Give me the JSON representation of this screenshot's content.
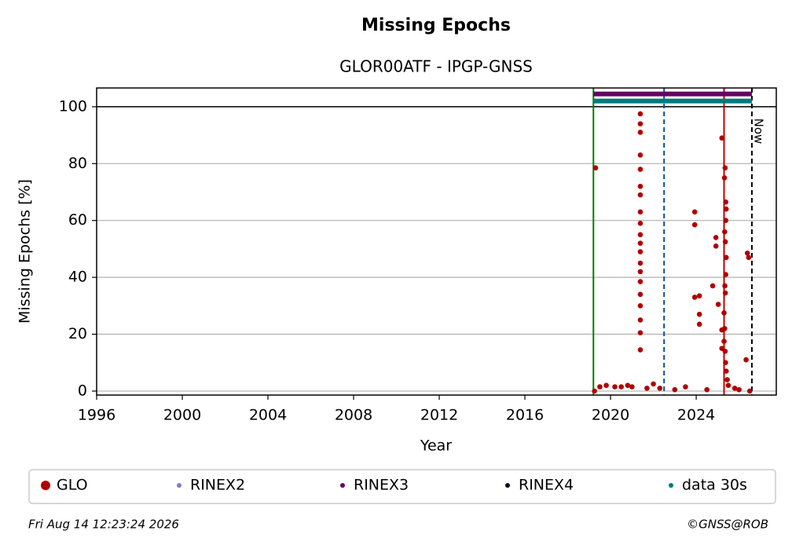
{
  "chart_data": {
    "type": "scatter",
    "title": "Missing Epochs",
    "subtitle": "GLOR00ATF - IPGP-GNSS",
    "x_label": "Year",
    "y_label": "Missing Epochs [%]",
    "xlim": [
      1996,
      2027.74
    ],
    "ylim": [
      -1.4,
      106.6
    ],
    "xticks": [
      1996,
      2000,
      2004,
      2008,
      2012,
      2016,
      2020,
      2024
    ],
    "yticks": [
      0,
      20,
      40,
      60,
      80,
      100
    ],
    "grid": true,
    "reference_line": 100,
    "vlines": [
      {
        "x": 2019.2,
        "color": "#008000",
        "style": "solid"
      },
      {
        "x": 2022.5,
        "color": "#00509e",
        "style": "dashed"
      },
      {
        "x": 2025.3,
        "color": "#c00000",
        "style": "solid"
      },
      {
        "x": 2026.6,
        "color": "#000000",
        "style": "dashed",
        "label": "Now"
      }
    ],
    "series": [
      {
        "name": "GLO",
        "color": "#b00000",
        "style": "points",
        "x": [
          2019.3,
          2019.25,
          2019.5,
          2019.8,
          2020.2,
          2020.5,
          2020.8,
          2021.0,
          2021.7,
          2022.0,
          2022.3,
          2023.0,
          2023.5,
          2024.5,
          2025.8,
          2026.0,
          2026.5,
          2021.39,
          2021.39,
          2021.39,
          2021.39,
          2021.39,
          2021.39,
          2021.39,
          2021.39,
          2021.39,
          2021.39,
          2021.39,
          2021.39,
          2021.39,
          2021.39,
          2021.39,
          2021.39,
          2021.39,
          2021.39,
          2021.39,
          2021.39,
          2023.93,
          2023.93,
          2023.93,
          2024.15,
          2024.15,
          2024.15,
          2024.77,
          2024.92,
          2024.92,
          2025.03,
          2025.2,
          2025.2,
          2025.2,
          2025.35,
          2025.32,
          2025.38,
          2025.4,
          2025.38,
          2025.33,
          2025.36,
          2025.4,
          2025.38,
          2025.34,
          2025.36,
          2025.3,
          2025.33,
          2025.3,
          2025.35,
          2025.37,
          2025.4,
          2025.45,
          2025.5,
          2026.39,
          2026.45,
          2026.33
        ],
        "values": [
          78.5,
          0,
          1.5,
          2,
          1.5,
          1.5,
          2,
          1.5,
          1,
          2.5,
          1,
          0.5,
          1.5,
          0.5,
          1,
          0.5,
          0,
          97.5,
          94,
          91,
          83,
          78,
          72,
          69,
          63,
          59,
          55,
          52,
          49,
          45,
          42,
          38.5,
          34,
          30,
          25,
          20.5,
          14.5,
          63,
          58.5,
          33,
          33.5,
          23.5,
          27,
          37,
          54,
          51,
          30.5,
          89,
          21.5,
          15,
          78.5,
          75,
          66.5,
          64,
          60,
          56,
          52.5,
          47,
          41,
          37,
          34.5,
          27.5,
          22,
          17.5,
          14,
          10,
          7,
          4,
          2,
          48.5,
          47,
          11
        ]
      },
      {
        "name": "RINEX2",
        "color": "#7f7fbf",
        "style": "points",
        "x": [],
        "values": []
      },
      {
        "name": "RINEX3",
        "color": "#660066",
        "style": "band",
        "x": [
          2019.2,
          2026.6
        ],
        "values": [
          104.5,
          104.5
        ]
      },
      {
        "name": "RINEX4",
        "color": "#1a0022",
        "style": "points",
        "x": [],
        "values": []
      },
      {
        "name": "data 30s",
        "color": "#007a7a",
        "style": "band",
        "x": [
          2019.2,
          2026.6
        ],
        "values": [
          102,
          102
        ]
      }
    ],
    "footer_left": "Fri Aug 14 12:23:24 2026",
    "footer_right": "©GNSS@ROB"
  }
}
